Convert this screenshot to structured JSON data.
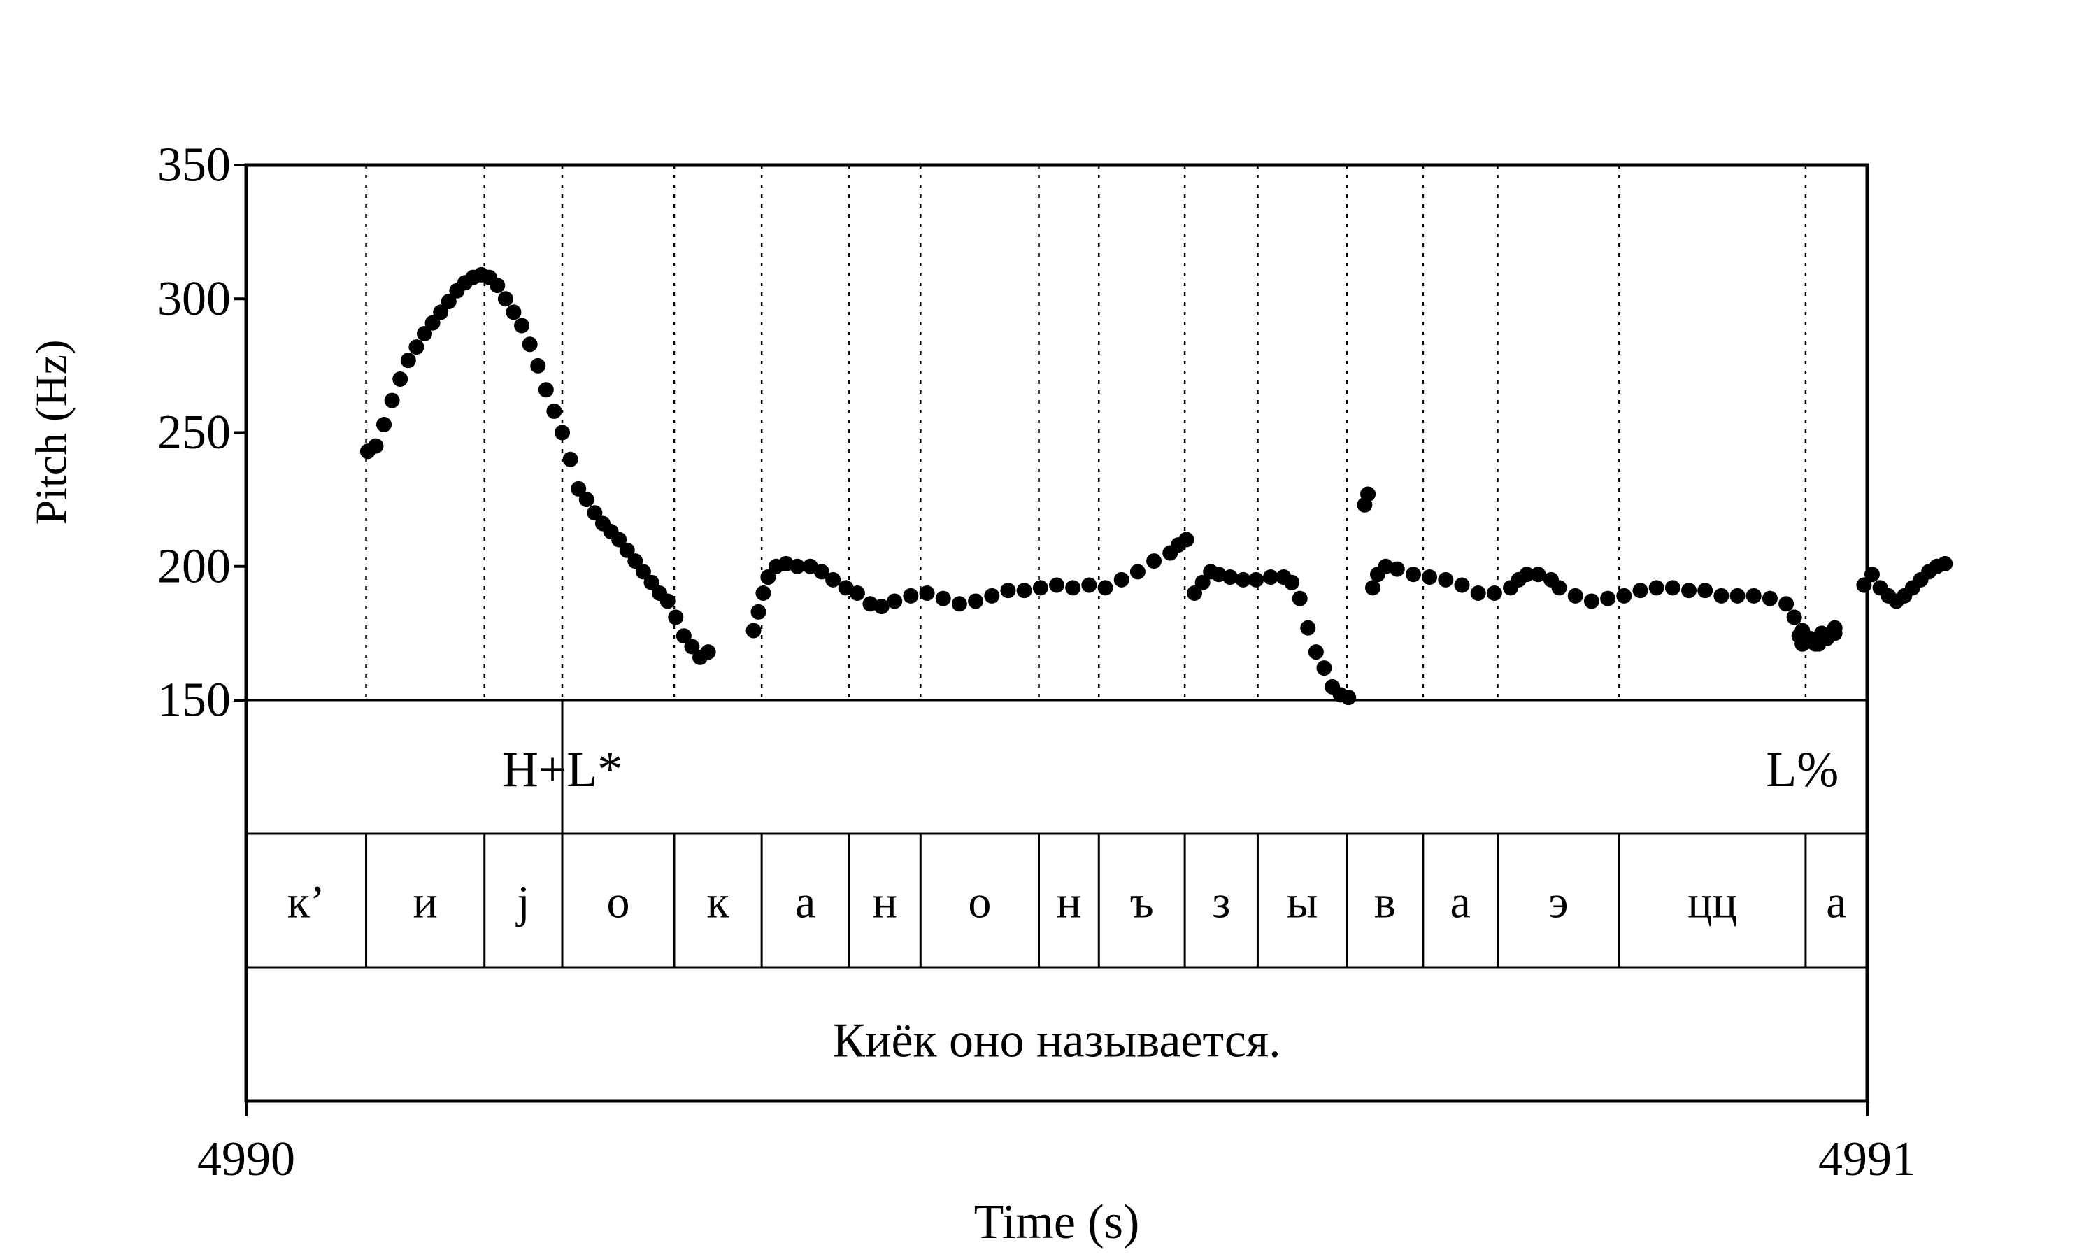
{
  "chart_data": {
    "type": "scatter",
    "xlabel": "Time (s)",
    "ylabel": "Pitch (Hz)",
    "xlim": [
      4990,
      4991
    ],
    "ylim": [
      150,
      350
    ],
    "x_ticks": [
      "4990",
      "4991"
    ],
    "y_ticks": [
      "150",
      "200",
      "250",
      "300",
      "350"
    ],
    "grid": false,
    "series": [
      {
        "points": [
          [
            4990.075,
            243
          ],
          [
            4990.08,
            245
          ],
          [
            4990.085,
            253
          ],
          [
            4990.09,
            262
          ],
          [
            4990.095,
            270
          ],
          [
            4990.1,
            277
          ],
          [
            4990.105,
            282
          ],
          [
            4990.11,
            287
          ],
          [
            4990.115,
            291
          ],
          [
            4990.12,
            295
          ],
          [
            4990.125,
            299
          ],
          [
            4990.13,
            303
          ],
          [
            4990.135,
            306
          ],
          [
            4990.14,
            308
          ],
          [
            4990.145,
            309
          ],
          [
            4990.15,
            308
          ],
          [
            4990.155,
            305
          ],
          [
            4990.16,
            300
          ],
          [
            4990.165,
            295
          ],
          [
            4990.17,
            290
          ],
          [
            4990.175,
            283
          ],
          [
            4990.18,
            275
          ],
          [
            4990.185,
            266
          ],
          [
            4990.19,
            258
          ],
          [
            4990.195,
            250
          ],
          [
            4990.2,
            240
          ],
          [
            4990.205,
            229
          ],
          [
            4990.21,
            225
          ],
          [
            4990.215,
            220
          ],
          [
            4990.22,
            216
          ],
          [
            4990.225,
            213
          ],
          [
            4990.23,
            210
          ],
          [
            4990.235,
            206
          ],
          [
            4990.24,
            202
          ],
          [
            4990.245,
            198
          ],
          [
            4990.25,
            194
          ],
          [
            4990.255,
            190
          ],
          [
            4990.26,
            187
          ],
          [
            4990.265,
            181
          ],
          [
            4990.27,
            174
          ],
          [
            4990.275,
            170
          ],
          [
            4990.28,
            166
          ],
          [
            4990.285,
            168
          ],
          [
            4990.313,
            176
          ],
          [
            4990.316,
            183
          ],
          [
            4990.319,
            190
          ],
          [
            4990.322,
            196
          ],
          [
            4990.327,
            200
          ],
          [
            4990.333,
            201
          ],
          [
            4990.34,
            200
          ],
          [
            4990.348,
            200
          ],
          [
            4990.355,
            198
          ],
          [
            4990.362,
            195
          ],
          [
            4990.37,
            192
          ],
          [
            4990.377,
            190
          ],
          [
            4990.385,
            186
          ],
          [
            4990.392,
            185
          ],
          [
            4990.4,
            187
          ],
          [
            4990.41,
            189
          ],
          [
            4990.42,
            190
          ],
          [
            4990.43,
            188
          ],
          [
            4990.44,
            186
          ],
          [
            4990.45,
            187
          ],
          [
            4990.46,
            189
          ],
          [
            4990.47,
            191
          ],
          [
            4990.48,
            191
          ],
          [
            4990.49,
            192
          ],
          [
            4990.5,
            193
          ],
          [
            4990.51,
            192
          ],
          [
            4990.52,
            193
          ],
          [
            4990.53,
            192
          ],
          [
            4990.54,
            195
          ],
          [
            4990.55,
            198
          ],
          [
            4990.56,
            202
          ],
          [
            4990.57,
            205
          ],
          [
            4990.575,
            208
          ],
          [
            4990.58,
            210
          ],
          [
            4990.585,
            190
          ],
          [
            4990.59,
            194
          ],
          [
            4990.595,
            198
          ],
          [
            4990.6,
            197
          ],
          [
            4990.607,
            196
          ],
          [
            4990.615,
            195
          ],
          [
            4990.623,
            195
          ],
          [
            4990.632,
            196
          ],
          [
            4990.64,
            196
          ],
          [
            4990.645,
            194
          ],
          [
            4990.65,
            188
          ],
          [
            4990.655,
            177
          ],
          [
            4990.66,
            168
          ],
          [
            4990.665,
            162
          ],
          [
            4990.67,
            155
          ],
          [
            4990.675,
            152
          ],
          [
            4990.68,
            151
          ],
          [
            4990.69,
            223
          ],
          [
            4990.692,
            227
          ],
          [
            4990.695,
            192
          ],
          [
            4990.698,
            197
          ],
          [
            4990.703,
            200
          ],
          [
            4990.71,
            199
          ],
          [
            4990.72,
            197
          ],
          [
            4990.73,
            196
          ],
          [
            4990.74,
            195
          ],
          [
            4990.75,
            193
          ],
          [
            4990.76,
            190
          ],
          [
            4990.77,
            190
          ],
          [
            4990.78,
            192
          ],
          [
            4990.785,
            195
          ],
          [
            4990.79,
            197
          ],
          [
            4990.797,
            197
          ],
          [
            4990.805,
            195
          ],
          [
            4990.81,
            192
          ],
          [
            4990.82,
            189
          ],
          [
            4990.83,
            187
          ],
          [
            4990.84,
            188
          ],
          [
            4990.85,
            189
          ],
          [
            4990.86,
            191
          ],
          [
            4990.87,
            192
          ],
          [
            4990.88,
            192
          ],
          [
            4990.89,
            191
          ],
          [
            4990.9,
            191
          ],
          [
            4990.91,
            189
          ],
          [
            4990.92,
            189
          ],
          [
            4990.93,
            189
          ],
          [
            4990.94,
            188
          ],
          [
            4990.95,
            186
          ],
          [
            4990.955,
            181
          ],
          [
            4990.96,
            176
          ],
          [
            4990.965,
            173
          ],
          [
            4990.97,
            171
          ],
          [
            4990.975,
            173
          ],
          [
            4990.98,
            177
          ],
          [
            4990.96,
            171
          ],
          [
            4990.965,
            172
          ],
          [
            4990.972,
            175
          ],
          [
            4990.958,
            174
          ],
          [
            4990.962,
            172
          ],
          [
            4990.968,
            171
          ],
          [
            4990.975,
            174
          ],
          [
            4990.998,
            193
          ],
          [
            4991.003,
            197
          ],
          [
            4991.008,
            192
          ],
          [
            4991.013,
            189
          ],
          [
            4991.018,
            187
          ],
          [
            4991.023,
            189
          ],
          [
            4991.028,
            192
          ],
          [
            4991.033,
            195
          ],
          [
            4991.038,
            198
          ],
          [
            4991.043,
            200
          ],
          [
            4991.048,
            201
          ],
          [
            4990.96,
            171
          ],
          [
            4990.98,
            175
          ]
        ]
      }
    ],
    "annotation_tiers": [
      {
        "name": "tones",
        "boundaries": [
          4990.195
        ],
        "labels": [
          {
            "text": "H+L*",
            "x": 4990.195
          },
          {
            "text": "L%",
            "x": 4990.96
          }
        ]
      },
      {
        "name": "phones",
        "boundaries": [
          4990.074,
          4990.147,
          4990.195,
          4990.264,
          4990.318,
          4990.372,
          4990.416,
          4990.489,
          4990.526,
          4990.579,
          4990.624,
          4990.679,
          4990.726,
          4990.772,
          4990.847,
          4990.962
        ],
        "labels": [
          "к’",
          "и",
          "j",
          "о",
          "к",
          "а",
          "н",
          "о",
          "н",
          "ъ",
          "з",
          "ы",
          "в",
          "а",
          "э",
          "цц",
          "а"
        ]
      },
      {
        "name": "sentence",
        "boundaries": [],
        "labels": [
          "Киёк оно называется."
        ]
      }
    ]
  }
}
